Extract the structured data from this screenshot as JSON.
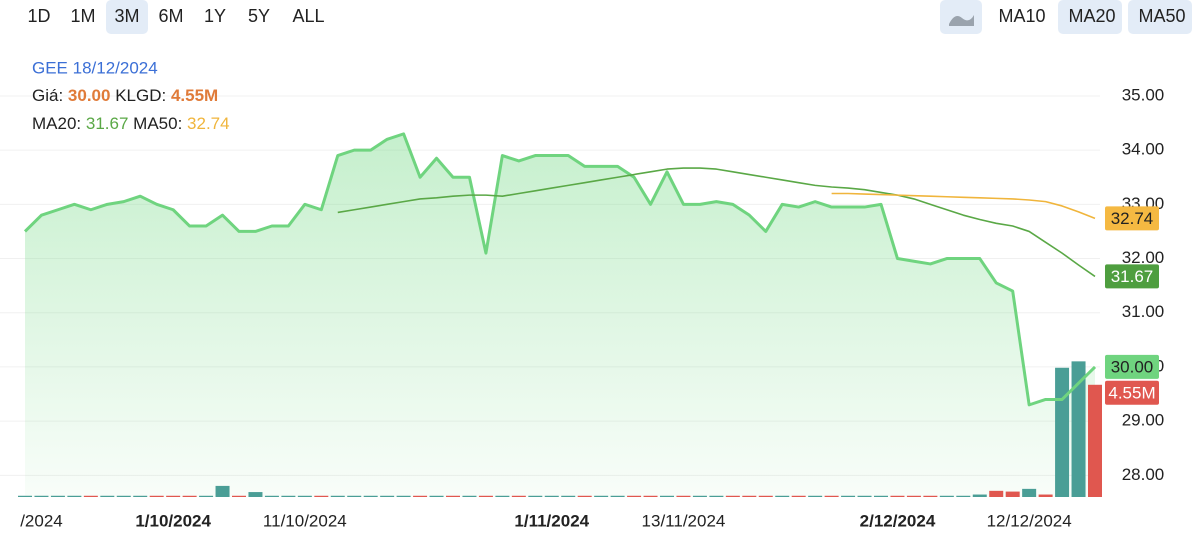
{
  "toolbar": {
    "ranges": [
      {
        "label": "1D",
        "active": false
      },
      {
        "label": "1M",
        "active": false
      },
      {
        "label": "3M",
        "active": true
      },
      {
        "label": "6M",
        "active": false
      },
      {
        "label": "1Y",
        "active": false
      },
      {
        "label": "5Y",
        "active": false
      },
      {
        "label": "ALL",
        "active": false
      }
    ],
    "indicators": [
      {
        "label": "MA10",
        "active": false
      },
      {
        "label": "MA20",
        "active": true
      },
      {
        "label": "MA50",
        "active": true
      }
    ]
  },
  "chart_data": {
    "type": "stock",
    "info": {
      "title": "GEE 18/12/2024",
      "price_label": "Giá:",
      "price": "30.00",
      "volume_label": "KLGD:",
      "volume": "4.55M",
      "ma20_label": "MA20:",
      "ma20": "31.67",
      "ma50_label": "MA50:",
      "ma50": "32.74"
    },
    "categories": [
      null,
      "/2024",
      null,
      null,
      null,
      null,
      null,
      null,
      null,
      "1/10/2024",
      null,
      null,
      null,
      null,
      null,
      null,
      null,
      "11/10/2024",
      null,
      null,
      null,
      null,
      null,
      null,
      null,
      null,
      null,
      null,
      null,
      null,
      null,
      null,
      "1/11/2024",
      null,
      null,
      null,
      null,
      null,
      null,
      null,
      "13/11/2024",
      null,
      null,
      null,
      null,
      null,
      null,
      null,
      null,
      null,
      null,
      null,
      null,
      "2/12/2024",
      null,
      null,
      null,
      null,
      null,
      null,
      null,
      "12/12/2024",
      null,
      null,
      null,
      null
    ],
    "ylim": [
      27.6,
      35.7
    ],
    "yticks": [
      {
        "value": 28,
        "label": "28.00"
      },
      {
        "value": 29,
        "label": "29.00"
      },
      {
        "value": 30,
        "label": "30.00"
      },
      {
        "value": 31,
        "label": "31.00"
      },
      {
        "value": 32,
        "label": "32.00"
      },
      {
        "value": 33,
        "label": "33.00"
      },
      {
        "value": 34,
        "label": "34.00"
      },
      {
        "value": 35,
        "label": "35.00"
      }
    ],
    "y2lim": [
      0,
      17.8
    ],
    "grid": true,
    "series": [
      {
        "color": "#6fd47f",
        "values": [
          32.5,
          32.8,
          32.9,
          33.0,
          32.9,
          33.0,
          33.05,
          33.15,
          33.0,
          32.9,
          32.6,
          32.6,
          32.8,
          32.5,
          32.5,
          32.6,
          32.6,
          33.0,
          32.9,
          33.9,
          34.0,
          34.0,
          34.2,
          34.3,
          33.5,
          33.85,
          33.5,
          33.5,
          32.1,
          33.9,
          33.8,
          33.9,
          33.9,
          33.9,
          33.7,
          33.7,
          33.7,
          33.5,
          33.0,
          33.6,
          33.0,
          33.0,
          33.05,
          33.0,
          32.8,
          32.5,
          33.0,
          32.95,
          33.05,
          32.95,
          32.95,
          32.95,
          33.0,
          32.0,
          31.95,
          31.9,
          32.0,
          32.0,
          32.0,
          31.55,
          31.4,
          29.3,
          29.4,
          29.4,
          29.7,
          30.0
        ]
      },
      {
        "color": "#5aa846",
        "values": [
          null,
          null,
          null,
          null,
          null,
          null,
          null,
          null,
          null,
          null,
          null,
          null,
          null,
          null,
          null,
          null,
          null,
          null,
          null,
          32.85,
          32.9,
          32.95,
          33.0,
          33.05,
          33.1,
          33.12,
          33.15,
          33.17,
          33.17,
          33.15,
          33.2,
          33.25,
          33.3,
          33.35,
          33.4,
          33.45,
          33.5,
          33.55,
          33.6,
          33.65,
          33.67,
          33.67,
          33.65,
          33.6,
          33.55,
          33.5,
          33.45,
          33.4,
          33.35,
          33.32,
          33.3,
          33.27,
          33.22,
          33.17,
          33.1,
          33.0,
          32.9,
          32.8,
          32.72,
          32.65,
          32.6,
          32.5,
          32.3,
          32.1,
          31.88,
          31.67
        ]
      },
      {
        "color": "#f0b53c",
        "values": [
          null,
          null,
          null,
          null,
          null,
          null,
          null,
          null,
          null,
          null,
          null,
          null,
          null,
          null,
          null,
          null,
          null,
          null,
          null,
          null,
          null,
          null,
          null,
          null,
          null,
          null,
          null,
          null,
          null,
          null,
          null,
          null,
          null,
          null,
          null,
          null,
          null,
          null,
          null,
          null,
          null,
          null,
          null,
          null,
          null,
          null,
          null,
          null,
          null,
          33.2,
          33.2,
          33.19,
          33.18,
          33.17,
          33.16,
          33.15,
          33.14,
          33.13,
          33.12,
          33.11,
          33.1,
          33.08,
          33.05,
          32.97,
          32.86,
          32.74
        ]
      },
      {
        "axis": "y2",
        "values": [
          0.05,
          0.05,
          0.05,
          0.05,
          0.05,
          0.05,
          0.05,
          0.05,
          0.05,
          0.05,
          0.05,
          0.05,
          0.45,
          0.05,
          0.2,
          0.05,
          0.05,
          0.05,
          0.05,
          0.05,
          0.05,
          0.05,
          0.05,
          0.05,
          0.05,
          0.05,
          0.05,
          0.05,
          0.05,
          0.05,
          0.05,
          0.05,
          0.05,
          0.05,
          0.05,
          0.05,
          0.05,
          0.05,
          0.05,
          0.05,
          0.05,
          0.05,
          0.05,
          0.05,
          0.05,
          0.05,
          0.05,
          0.05,
          0.05,
          0.05,
          0.05,
          0.05,
          0.05,
          0.05,
          0.05,
          0.05,
          0.05,
          0.05,
          0.1,
          0.25,
          0.22,
          0.33,
          0.1,
          5.24,
          5.5,
          4.55
        ],
        "colors": [
          "#4a9e96",
          "#4a9e96",
          "#4a9e96",
          "#4a9e96",
          "#e0574f",
          "#4a9e96",
          "#4a9e96",
          "#4a9e96",
          "#e0574f",
          "#e0574f",
          "#e0574f",
          "#4a9e96",
          "#4a9e96",
          "#e0574f",
          "#4a9e96",
          "#4a9e96",
          "#4a9e96",
          "#4a9e96",
          "#e0574f",
          "#4a9e96",
          "#4a9e96",
          "#4a9e96",
          "#4a9e96",
          "#4a9e96",
          "#e0574f",
          "#4a9e96",
          "#e0574f",
          "#4a9e96",
          "#e0574f",
          "#4a9e96",
          "#e0574f",
          "#4a9e96",
          "#4a9e96",
          "#4a9e96",
          "#e0574f",
          "#4a9e96",
          "#4a9e96",
          "#e0574f",
          "#e0574f",
          "#4a9e96",
          "#e0574f",
          "#4a9e96",
          "#4a9e96",
          "#e0574f",
          "#e0574f",
          "#e0574f",
          "#4a9e96",
          "#e0574f",
          "#4a9e96",
          "#e0574f",
          "#4a9e96",
          "#4a9e96",
          "#4a9e96",
          "#e0574f",
          "#e0574f",
          "#e0574f",
          "#4a9e96",
          "#4a9e96",
          "#4a9e96",
          "#e0574f",
          "#e0574f",
          "#4a9e96",
          "#e0574f",
          "#4a9e96",
          "#4a9e96",
          "#e0574f"
        ]
      }
    ]
  }
}
